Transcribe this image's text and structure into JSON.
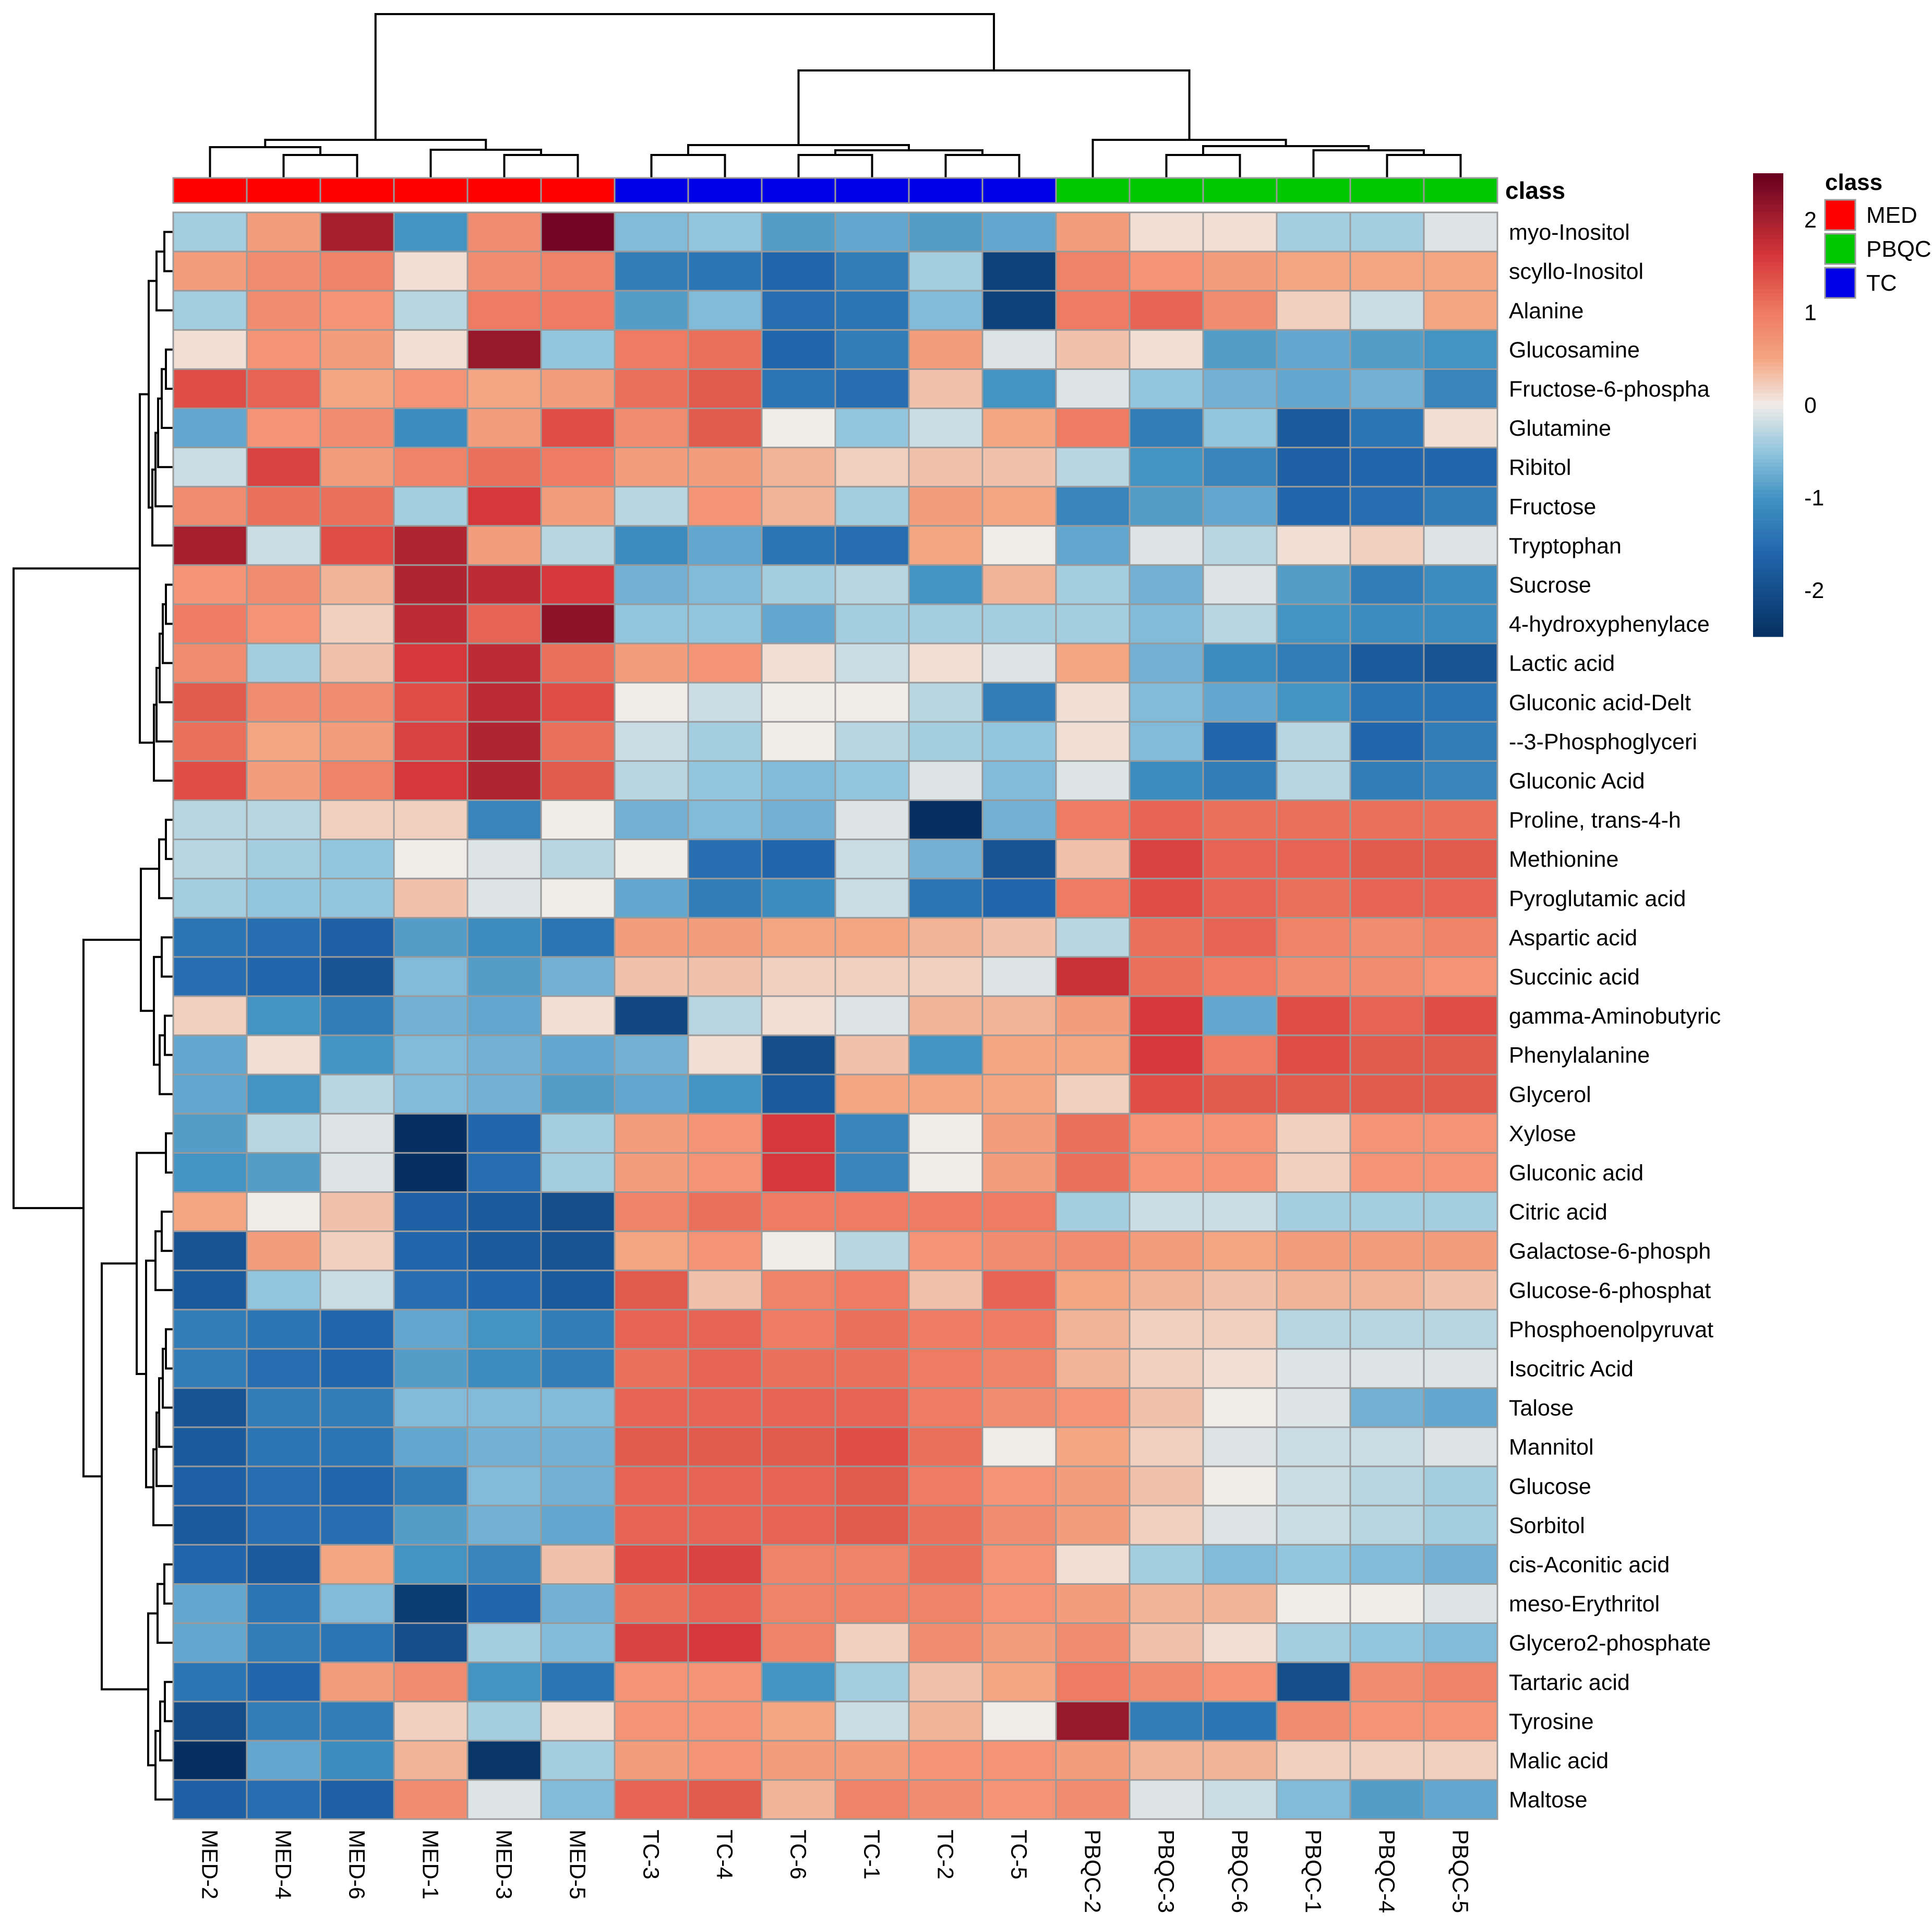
{
  "chart_data": {
    "type": "heatmap",
    "title": "",
    "columns": [
      "MED-2",
      "MED-4",
      "MED-6",
      "MED-1",
      "MED-3",
      "MED-5",
      "TC-3",
      "TC-4",
      "TC-6",
      "TC-1",
      "TC-2",
      "TC-5",
      "PBQC-2",
      "PBQC-3",
      "PBQC-6",
      "PBQC-1",
      "PBQC-4",
      "PBQC-5"
    ],
    "column_class": [
      "MED",
      "MED",
      "MED",
      "MED",
      "MED",
      "MED",
      "TC",
      "TC",
      "TC",
      "TC",
      "TC",
      "TC",
      "PBQC",
      "PBQC",
      "PBQC",
      "PBQC",
      "PBQC",
      "PBQC"
    ],
    "rows": [
      "myo-Inositol",
      "scyllo-Inositol",
      "Alanine",
      "Glucosamine",
      "Fructose-6-phospha",
      "Glutamine",
      "Ribitol",
      "Fructose",
      "Tryptophan",
      "Sucrose",
      "4-hydroxyphenylace",
      "Lactic acid",
      "Gluconic acid-Delt",
      "--3-Phosphoglyceri",
      "Gluconic Acid",
      "Proline, trans-4-h",
      "Methionine",
      "Pyroglutamic acid",
      "Aspartic acid",
      "Succinic acid",
      "gamma-Aminobutyric",
      "Phenylalanine",
      "Glycerol",
      "Xylose",
      "Gluconic acid",
      "Citric acid",
      "Galactose-6-phosph",
      "Glucose-6-phosphat",
      "Phosphoenolpyruvat",
      "Isocitric Acid",
      "Talose",
      "Mannitol",
      "Glucose",
      "Sorbitol",
      "cis-Aconitic acid",
      "meso-Erythritol",
      "Glycero2-phosphate",
      "Tartaric acid",
      "Tyrosine",
      "Malic acid",
      "Maltose"
    ],
    "values": [
      [
        -0.4,
        0.6,
        2.0,
        -1.0,
        0.8,
        2.4,
        -0.6,
        -0.5,
        -0.9,
        -0.8,
        -0.9,
        -0.8,
        0.6,
        0.1,
        0.1,
        -0.4,
        -0.4,
        -0.1
      ],
      [
        0.6,
        0.8,
        0.9,
        0.1,
        0.8,
        0.9,
        -1.3,
        -1.4,
        -1.6,
        -1.3,
        -0.4,
        -2.2,
        0.9,
        0.7,
        0.6,
        0.5,
        0.5,
        0.5
      ],
      [
        -0.4,
        0.8,
        0.7,
        -0.3,
        1.0,
        1.0,
        -0.9,
        -0.6,
        -1.5,
        -1.4,
        -0.6,
        -2.2,
        1.0,
        1.2,
        0.8,
        0.2,
        -0.2,
        0.5
      ],
      [
        0.1,
        0.7,
        0.6,
        0.1,
        2.1,
        -0.5,
        1.0,
        1.1,
        -1.6,
        -1.3,
        0.6,
        -0.1,
        0.3,
        0.1,
        -0.9,
        -0.8,
        -0.9,
        -1.0
      ],
      [
        1.4,
        1.2,
        0.5,
        0.7,
        0.5,
        0.6,
        1.1,
        1.3,
        -1.4,
        -1.5,
        0.3,
        -1.0,
        -0.1,
        -0.5,
        -0.7,
        -0.8,
        -0.7,
        -1.2
      ],
      [
        -0.8,
        0.7,
        0.8,
        -1.1,
        0.6,
        1.4,
        0.8,
        1.3,
        0.0,
        -0.5,
        -0.2,
        0.5,
        1.0,
        -1.3,
        -0.5,
        -1.8,
        -1.4,
        0.1
      ],
      [
        -0.2,
        1.5,
        0.6,
        0.9,
        1.1,
        1.0,
        0.6,
        0.6,
        0.4,
        0.2,
        0.3,
        0.3,
        -0.3,
        -1.0,
        -1.2,
        -1.7,
        -1.6,
        -1.6
      ],
      [
        0.8,
        1.1,
        1.1,
        -0.4,
        1.6,
        0.6,
        -0.3,
        0.7,
        0.4,
        -0.4,
        0.6,
        0.5,
        -1.2,
        -0.9,
        -0.8,
        -1.6,
        -1.5,
        -1.3
      ],
      [
        2.0,
        -0.2,
        1.4,
        1.9,
        0.6,
        -0.3,
        -1.1,
        -0.8,
        -1.4,
        -1.5,
        0.5,
        0.0,
        -0.8,
        -0.1,
        -0.3,
        0.1,
        0.2,
        -0.1
      ],
      [
        0.7,
        0.8,
        0.4,
        1.9,
        1.8,
        1.6,
        -0.7,
        -0.6,
        -0.4,
        -0.3,
        -1.0,
        0.4,
        -0.4,
        -0.7,
        -0.1,
        -0.9,
        -1.3,
        -1.1
      ],
      [
        1.0,
        0.7,
        0.2,
        1.8,
        1.2,
        2.2,
        -0.5,
        -0.5,
        -0.8,
        -0.4,
        -0.4,
        -0.4,
        -0.4,
        -0.6,
        -0.3,
        -1.0,
        -1.1,
        -1.1
      ],
      [
        0.8,
        -0.4,
        0.3,
        1.6,
        1.8,
        1.1,
        0.6,
        0.7,
        0.1,
        -0.2,
        0.1,
        -0.1,
        0.5,
        -0.7,
        -1.1,
        -1.3,
        -1.8,
        -1.9
      ],
      [
        1.3,
        0.8,
        0.8,
        1.4,
        1.8,
        1.4,
        0.0,
        -0.2,
        0.0,
        0.0,
        -0.3,
        -1.3,
        0.1,
        -0.6,
        -0.8,
        -1.0,
        -1.4,
        -1.4
      ],
      [
        1.1,
        0.5,
        0.6,
        1.5,
        1.9,
        1.1,
        -0.2,
        -0.4,
        0.0,
        -0.3,
        -0.4,
        -0.5,
        0.1,
        -0.6,
        -1.6,
        -0.3,
        -1.6,
        -1.3
      ],
      [
        1.4,
        0.6,
        0.9,
        1.6,
        1.9,
        1.3,
        -0.3,
        -0.5,
        -0.6,
        -0.5,
        -0.1,
        -0.6,
        -0.1,
        -1.1,
        -1.3,
        -0.3,
        -1.3,
        -1.2
      ],
      [
        -0.3,
        -0.3,
        0.2,
        0.2,
        -1.2,
        0.0,
        -0.7,
        -0.6,
        -0.7,
        -0.1,
        -2.5,
        -0.7,
        1.0,
        1.2,
        1.1,
        1.1,
        1.1,
        1.1
      ],
      [
        -0.3,
        -0.4,
        -0.5,
        0.0,
        -0.1,
        -0.3,
        0.0,
        -1.5,
        -1.6,
        -0.2,
        -0.7,
        -1.9,
        0.3,
        1.5,
        1.2,
        1.2,
        1.3,
        1.3
      ],
      [
        -0.4,
        -0.5,
        -0.5,
        0.3,
        -0.1,
        0.0,
        -0.8,
        -1.3,
        -1.1,
        -0.2,
        -1.4,
        -1.6,
        1.0,
        1.4,
        1.2,
        1.1,
        1.2,
        1.2
      ],
      [
        -1.4,
        -1.5,
        -1.7,
        -0.9,
        -1.1,
        -1.4,
        0.6,
        0.6,
        0.5,
        0.5,
        0.4,
        0.3,
        -0.3,
        1.1,
        1.2,
        0.9,
        0.8,
        0.9
      ],
      [
        -1.5,
        -1.6,
        -1.9,
        -0.6,
        -0.9,
        -0.7,
        0.3,
        0.3,
        0.2,
        0.2,
        0.2,
        -0.1,
        1.7,
        1.1,
        1.0,
        0.8,
        0.8,
        0.7
      ],
      [
        0.2,
        -1.0,
        -1.3,
        -0.7,
        -0.8,
        0.1,
        -2.1,
        -0.3,
        0.1,
        -0.1,
        0.4,
        0.4,
        0.6,
        1.6,
        -0.8,
        1.4,
        1.2,
        1.4
      ],
      [
        -0.8,
        0.1,
        -1.0,
        -0.6,
        -0.7,
        -0.8,
        -0.7,
        0.1,
        -2.0,
        0.3,
        -1.0,
        0.5,
        0.5,
        1.6,
        1.0,
        1.4,
        1.3,
        1.3
      ],
      [
        -0.8,
        -1.0,
        -0.3,
        -0.6,
        -0.7,
        -0.9,
        -0.8,
        -1.0,
        -1.8,
        0.5,
        0.5,
        0.5,
        0.2,
        1.4,
        1.3,
        1.3,
        1.3,
        1.3
      ],
      [
        -0.9,
        -0.3,
        -0.1,
        -2.6,
        -1.6,
        -0.4,
        0.6,
        0.7,
        1.6,
        -1.2,
        0.0,
        0.6,
        1.1,
        0.7,
        0.7,
        0.2,
        0.7,
        0.7
      ],
      [
        -1.0,
        -0.9,
        -0.1,
        -2.5,
        -1.5,
        -0.4,
        0.6,
        0.7,
        1.6,
        -1.2,
        0.0,
        0.6,
        1.1,
        0.7,
        0.7,
        0.2,
        0.7,
        0.7
      ],
      [
        0.5,
        0.0,
        0.3,
        -1.7,
        -1.8,
        -2.0,
        0.9,
        1.1,
        1.0,
        1.0,
        1.0,
        1.0,
        -0.4,
        -0.2,
        -0.2,
        -0.4,
        -0.4,
        -0.4
      ],
      [
        -1.9,
        0.6,
        0.2,
        -1.6,
        -1.8,
        -1.9,
        0.5,
        0.7,
        0.0,
        -0.3,
        0.7,
        0.8,
        0.8,
        0.6,
        0.5,
        0.6,
        0.6,
        0.6
      ],
      [
        -1.8,
        -0.5,
        -0.2,
        -1.5,
        -1.6,
        -1.8,
        1.3,
        0.3,
        0.9,
        1.0,
        0.3,
        1.2,
        0.5,
        0.4,
        0.3,
        0.4,
        0.4,
        0.3
      ],
      [
        -1.3,
        -1.4,
        -1.6,
        -0.8,
        -1.0,
        -1.3,
        1.2,
        1.2,
        1.0,
        1.1,
        1.0,
        1.0,
        0.4,
        0.2,
        0.2,
        -0.3,
        -0.3,
        -0.3
      ],
      [
        -1.3,
        -1.5,
        -1.6,
        -0.9,
        -1.1,
        -1.3,
        1.1,
        1.2,
        1.1,
        1.1,
        1.0,
        0.9,
        0.4,
        0.2,
        0.1,
        -0.1,
        -0.1,
        -0.1
      ],
      [
        -1.9,
        -1.3,
        -1.3,
        -0.6,
        -0.6,
        -0.6,
        1.2,
        1.2,
        1.2,
        1.2,
        1.0,
        0.8,
        0.7,
        0.3,
        0.0,
        -0.1,
        -0.7,
        -0.8
      ],
      [
        -1.8,
        -1.4,
        -1.4,
        -0.8,
        -0.7,
        -0.7,
        1.3,
        1.3,
        1.3,
        1.4,
        1.1,
        0.0,
        0.5,
        0.2,
        -0.1,
        -0.2,
        -0.2,
        -0.1
      ],
      [
        -1.7,
        -1.5,
        -1.6,
        -1.3,
        -0.6,
        -0.7,
        1.2,
        1.2,
        1.2,
        1.3,
        1.0,
        0.7,
        0.6,
        0.3,
        0.0,
        -0.2,
        -0.3,
        -0.4
      ],
      [
        -1.8,
        -1.5,
        -1.5,
        -0.9,
        -0.7,
        -0.8,
        1.2,
        1.2,
        1.2,
        1.3,
        1.1,
        0.8,
        0.6,
        0.2,
        -0.1,
        -0.2,
        -0.3,
        -0.4
      ],
      [
        -1.6,
        -1.8,
        0.5,
        -1.0,
        -1.2,
        0.3,
        1.4,
        1.5,
        0.9,
        0.9,
        1.1,
        0.7,
        0.1,
        -0.4,
        -0.6,
        -0.5,
        -0.6,
        -0.7
      ],
      [
        -0.8,
        -1.4,
        -0.6,
        -2.3,
        -1.6,
        -0.7,
        1.1,
        1.2,
        0.9,
        0.9,
        0.9,
        0.7,
        0.6,
        0.4,
        0.4,
        0.0,
        0.0,
        -0.1
      ],
      [
        -0.8,
        -1.3,
        -1.4,
        -2.0,
        -0.4,
        -0.6,
        1.5,
        1.6,
        0.9,
        0.2,
        0.8,
        0.6,
        0.8,
        0.3,
        0.1,
        -0.4,
        -0.5,
        -0.6
      ],
      [
        -1.4,
        -1.6,
        0.6,
        0.8,
        -1.0,
        -1.4,
        0.7,
        0.7,
        -1.0,
        -0.4,
        0.3,
        0.5,
        1.0,
        0.8,
        0.7,
        -2.0,
        0.8,
        0.9
      ],
      [
        -2.0,
        -1.3,
        -1.3,
        0.2,
        -0.4,
        0.1,
        0.7,
        0.7,
        0.5,
        -0.2,
        0.4,
        0.0,
        2.1,
        -1.3,
        -1.4,
        0.8,
        0.7,
        0.7
      ],
      [
        -2.5,
        -0.8,
        -1.1,
        0.4,
        -2.4,
        -0.4,
        0.6,
        0.7,
        0.6,
        0.6,
        0.7,
        0.7,
        0.6,
        0.4,
        0.4,
        0.2,
        0.2,
        0.2
      ],
      [
        -1.7,
        -1.5,
        -1.7,
        0.8,
        -0.1,
        -0.6,
        1.2,
        1.3,
        0.4,
        0.9,
        0.8,
        0.7,
        0.8,
        -0.1,
        -0.2,
        -0.6,
        -0.9,
        -0.8
      ]
    ],
    "color_scale": {
      "min": -2.5,
      "max": 2.5,
      "stops": [
        [
          -2.5,
          "#053061"
        ],
        [
          -1.6,
          "#2166ac"
        ],
        [
          -1.0,
          "#4393c3"
        ],
        [
          -0.5,
          "#92c5de"
        ],
        [
          0.0,
          "#f0ece8"
        ],
        [
          0.5,
          "#f4a582"
        ],
        [
          1.0,
          "#ee7b62"
        ],
        [
          1.6,
          "#d6373a"
        ],
        [
          2.5,
          "#67001f"
        ]
      ],
      "ticks": [
        2,
        1,
        0,
        -1,
        -2
      ]
    },
    "legend": {
      "title": "class",
      "items": [
        {
          "label": "MED",
          "color": "#ff0000"
        },
        {
          "label": "PBQC",
          "color": "#00c800"
        },
        {
          "label": "TC",
          "color": "#0000e6"
        }
      ],
      "placement": "top-right"
    },
    "annotation_label": "class",
    "dendrograms": [
      "columns-top",
      "rows-left"
    ]
  }
}
